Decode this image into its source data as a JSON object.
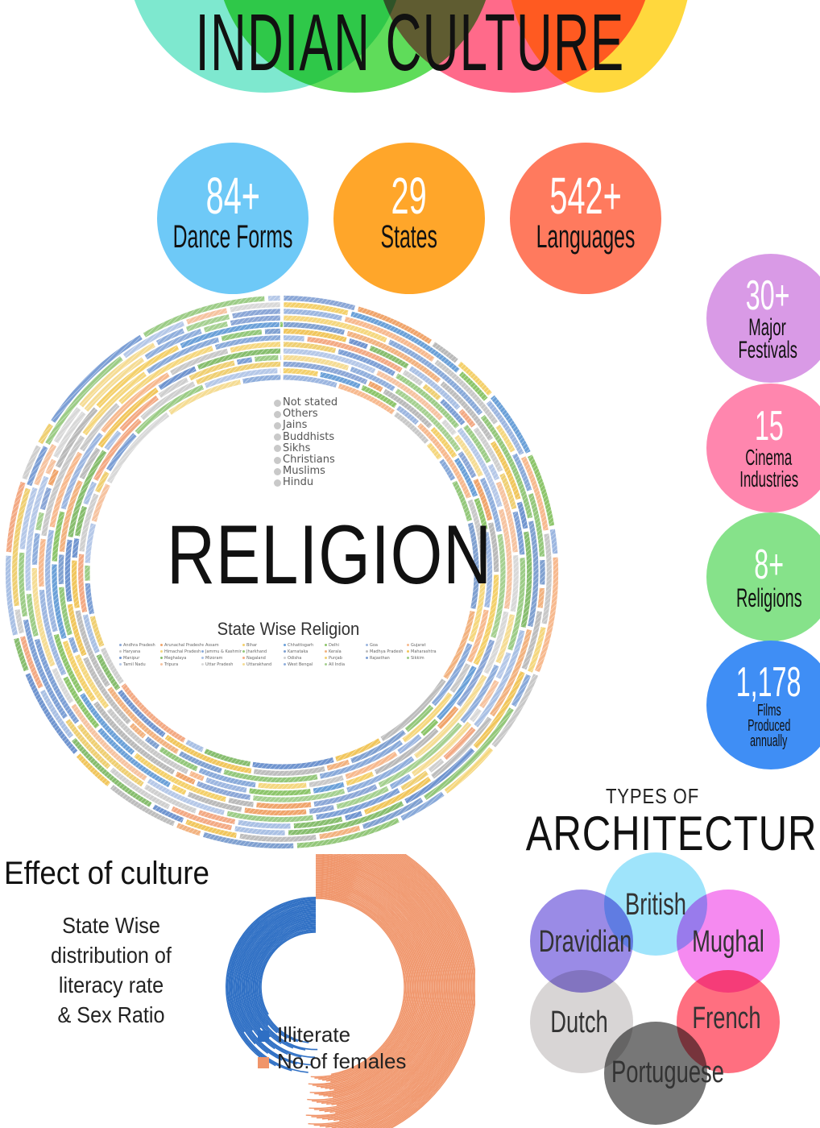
{
  "title": "INDIAN CULTURE",
  "colors": {
    "title_circles": [
      "#7ee8cf",
      "#5fdc5a",
      "#ff6a8a",
      "#ffd83d"
    ],
    "dance": "#6ec9f7",
    "states": "#ffa62a",
    "languages": "#ff7a5e",
    "festivals": "#d99ae6",
    "cinema": "#ff86ae",
    "religions": "#86e28a",
    "films": "#3f8ef5",
    "illiterate": "#2e6fc4",
    "females": "#f0956a"
  },
  "stats": [
    {
      "num": "84+",
      "label": "Dance Forms"
    },
    {
      "num": "29",
      "label": "States"
    },
    {
      "num": "542+",
      "label": "Languages"
    }
  ],
  "side_stats": [
    {
      "num": "30+",
      "label": "Major Festivals",
      "l1": "Major",
      "l2": "Festivals"
    },
    {
      "num": "15",
      "label": "Cinema Industries",
      "l1": "Cinema",
      "l2": "Industries"
    },
    {
      "num": "8+",
      "label": "Religions",
      "l1": "Religions",
      "l2": ""
    },
    {
      "num": "1,178",
      "label": "Films Produced annually",
      "l1": "Films",
      "l2": "Produced",
      "l3": "annually"
    }
  ],
  "religion": {
    "title": "RELIGION",
    "legend": [
      "Not stated",
      "Others",
      "Jains",
      "Buddhists",
      "Sikhs",
      "Christians",
      "Muslims",
      "Hindu"
    ],
    "subtitle": "State Wise Religion",
    "states": [
      "Andhra Pradesh",
      "Arunachal Pradesh",
      "Assam",
      "Bihar",
      "Chhattisgarh",
      "Delhi",
      "Goa",
      "Gujarat",
      "Haryana",
      "Himachal Pradesh",
      "Jammu & Kashmir",
      "Jharkhand",
      "Karnataka",
      "Kerala",
      "Madhya Pradesh",
      "Maharashtra",
      "Manipur",
      "Meghalaya",
      "Mizoram",
      "Nagaland",
      "Odisha",
      "Punjab",
      "Rajasthan",
      "Sikkim",
      "Tamil Nadu",
      "Tripura",
      "Uttar Pradesh",
      "Uttarakhand",
      "West Bengal",
      "All India"
    ],
    "state_colors": [
      "#8aa6d6",
      "#f0a46a",
      "#b9b9b9",
      "#f4d06a",
      "#6aa0d8",
      "#8cc56a",
      "#9cb6e0",
      "#f7b98e",
      "#c8c8c8",
      "#f5d77e",
      "#88a9d9",
      "#93c77a",
      "#7fa0d0",
      "#f2b27f",
      "#bdbdbd",
      "#f1c65c",
      "#6f94cf",
      "#86bd6d",
      "#a9c0e4",
      "#f3a983",
      "#cfcfcf",
      "#efcf72",
      "#7c9fd5",
      "#9ccc86",
      "#b5c8e8",
      "#f6c3a0",
      "#d8d8d8",
      "#f5dc94",
      "#8faedc",
      "#a5d090"
    ]
  },
  "effect": {
    "title": "Effect of culture",
    "subtitle_lines": [
      "State Wise",
      "distribution of",
      "literacy rate",
      "& Sex Ratio"
    ],
    "legend": [
      "Illiterate",
      "No.of females"
    ]
  },
  "architecture": {
    "pre_title": "TYPES OF",
    "title": "ARCHITECTURE",
    "types": [
      "British",
      "Dravidian",
      "Mughal",
      "Dutch",
      "French",
      "Portuguese"
    ],
    "colors": [
      "#9fe4fb",
      "#9a8be6",
      "#f58af0",
      "#d8d5d5",
      "#ff6f80",
      "#777777"
    ]
  }
}
